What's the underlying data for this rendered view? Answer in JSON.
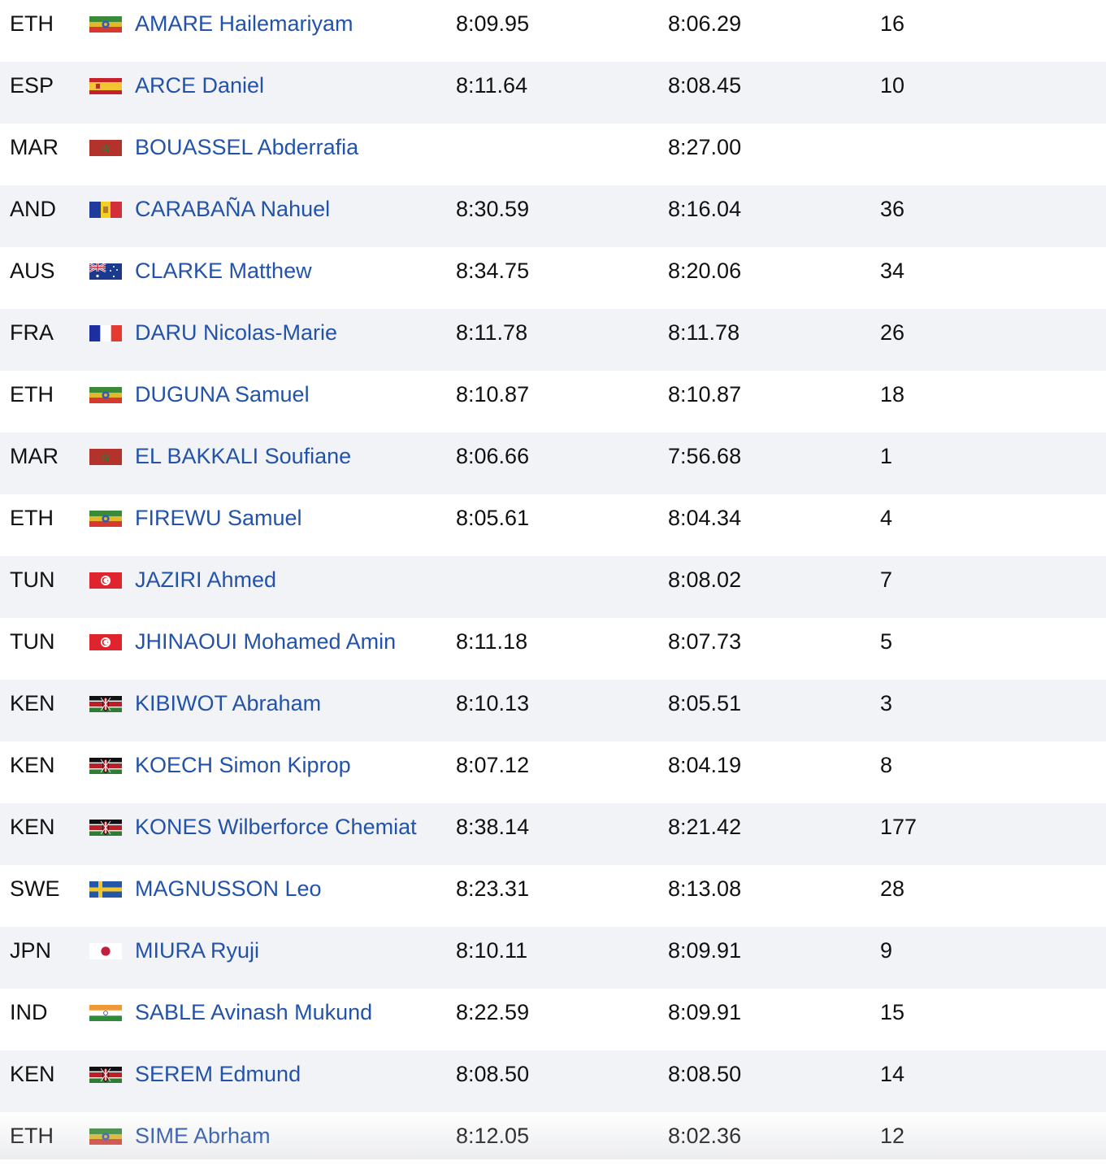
{
  "athletes": [
    {
      "country": "ETH",
      "flag": "ethiopia-flag-icon",
      "name": "AMARE Hailemariyam",
      "sb": "8:09.95",
      "pb": "8:06.29",
      "rank": "16"
    },
    {
      "country": "ESP",
      "flag": "spain-flag-icon",
      "name": "ARCE Daniel",
      "sb": "8:11.64",
      "pb": "8:08.45",
      "rank": "10"
    },
    {
      "country": "MAR",
      "flag": "morocco-flag-icon",
      "name": "BOUASSEL Abderrafia",
      "sb": "",
      "pb": "8:27.00",
      "rank": ""
    },
    {
      "country": "AND",
      "flag": "andorra-flag-icon",
      "name": "CARABAÑA Nahuel",
      "sb": "8:30.59",
      "pb": "8:16.04",
      "rank": "36"
    },
    {
      "country": "AUS",
      "flag": "australia-flag-icon",
      "name": "CLARKE Matthew",
      "sb": "8:34.75",
      "pb": "8:20.06",
      "rank": "34"
    },
    {
      "country": "FRA",
      "flag": "france-flag-icon",
      "name": "DARU Nicolas-Marie",
      "sb": "8:11.78",
      "pb": "8:11.78",
      "rank": "26"
    },
    {
      "country": "ETH",
      "flag": "ethiopia-flag-icon",
      "name": "DUGUNA Samuel",
      "sb": "8:10.87",
      "pb": "8:10.87",
      "rank": "18"
    },
    {
      "country": "MAR",
      "flag": "morocco-flag-icon",
      "name": "EL BAKKALI Soufiane",
      "sb": "8:06.66",
      "pb": "7:56.68",
      "rank": "1"
    },
    {
      "country": "ETH",
      "flag": "ethiopia-flag-icon",
      "name": "FIREWU Samuel",
      "sb": "8:05.61",
      "pb": "8:04.34",
      "rank": "4"
    },
    {
      "country": "TUN",
      "flag": "tunisia-flag-icon",
      "name": "JAZIRI Ahmed",
      "sb": "",
      "pb": "8:08.02",
      "rank": "7"
    },
    {
      "country": "TUN",
      "flag": "tunisia-flag-icon",
      "name": "JHINAOUI Mohamed Amin",
      "sb": "8:11.18",
      "pb": "8:07.73",
      "rank": "5"
    },
    {
      "country": "KEN",
      "flag": "kenya-flag-icon",
      "name": "KIBIWOT Abraham",
      "sb": "8:10.13",
      "pb": "8:05.51",
      "rank": "3"
    },
    {
      "country": "KEN",
      "flag": "kenya-flag-icon",
      "name": "KOECH Simon Kiprop",
      "sb": "8:07.12",
      "pb": "8:04.19",
      "rank": "8"
    },
    {
      "country": "KEN",
      "flag": "kenya-flag-icon",
      "name": "KONES Wilberforce Chemiat",
      "sb": "8:38.14",
      "pb": "8:21.42",
      "rank": "177"
    },
    {
      "country": "SWE",
      "flag": "sweden-flag-icon",
      "name": "MAGNUSSON Leo",
      "sb": "8:23.31",
      "pb": "8:13.08",
      "rank": "28"
    },
    {
      "country": "JPN",
      "flag": "japan-flag-icon",
      "name": "MIURA Ryuji",
      "sb": "8:10.11",
      "pb": "8:09.91",
      "rank": "9"
    },
    {
      "country": "IND",
      "flag": "india-flag-icon",
      "name": "SABLE Avinash Mukund",
      "sb": "8:22.59",
      "pb": "8:09.91",
      "rank": "15"
    },
    {
      "country": "KEN",
      "flag": "kenya-flag-icon",
      "name": "SEREM Edmund",
      "sb": "8:08.50",
      "pb": "8:08.50",
      "rank": "14"
    },
    {
      "country": "ETH",
      "flag": "ethiopia-flag-icon",
      "name": "SIME Abrham",
      "sb": "8:12.05",
      "pb": "8:02.36",
      "rank": "12"
    }
  ],
  "colors": {
    "link": "#2353a8",
    "text": "#111111",
    "row_alt": "#f2f3f6"
  }
}
